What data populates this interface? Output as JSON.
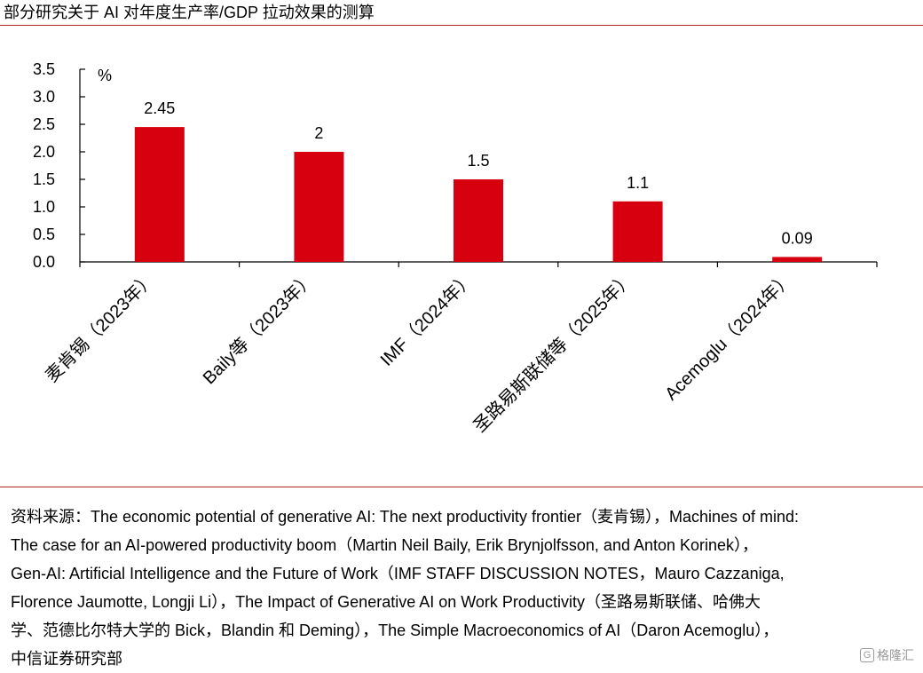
{
  "title": "部分研究关于 AI 对年度生产率/GDP 拉动效果的测算",
  "chart_data": {
    "type": "bar",
    "unit": "%",
    "categories": [
      "麦肯锡（2023年）",
      "Baily等（2023年）",
      "IMF（2024年）",
      "圣路易斯联储等（2025年）",
      "Acemoglu（2024年）"
    ],
    "values": [
      2.45,
      2,
      1.5,
      1.1,
      0.09
    ],
    "value_labels": [
      "2.45",
      "2",
      "1.5",
      "1.1",
      "0.09"
    ],
    "yticks": [
      "0.0",
      "0.5",
      "1.0",
      "1.5",
      "2.0",
      "2.5",
      "3.0",
      "3.5"
    ],
    "ylim": [
      0,
      3.5
    ],
    "bar_color": "#d7000f",
    "grid": false,
    "legend": "none"
  },
  "source": {
    "lines": [
      "资料来源：The economic potential of generative AI: The next productivity frontier（麦肯锡），Machines of mind:",
      "The case for an AI-powered productivity boom（Martin Neil Baily, Erik Brynjolfsson, and Anton Korinek），",
      "Gen-AI: Artificial Intelligence and the Future of Work（IMF STAFF DISCUSSION NOTES，Mauro Cazzaniga,",
      "Florence Jaumotte, Longji Li），The Impact of Generative AI on Work Productivity（圣路易斯联储、哈佛大",
      "学、范德比尔特大学的 Bick，Blandin 和 Deming），The Simple Macroeconomics of AI（Daron Acemoglu），",
      "中信证券研究部"
    ]
  },
  "watermark": {
    "mark": "G",
    "text": "格隆汇"
  }
}
